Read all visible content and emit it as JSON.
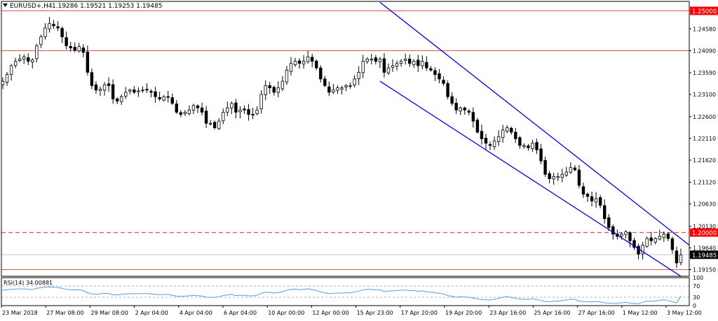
{
  "header": {
    "symbol_timeframe": "EURUSD+,H4",
    "ohlc": "1.19286 1.19521 1.19253 1.19485"
  },
  "colors": {
    "background": "#ffffff",
    "frame": "#000000",
    "candle_up": "#ffffff",
    "candle_down": "#000000",
    "level_line": "#d9534f",
    "level_label_bg": "#ff0000",
    "price_label_bg": "#000000",
    "channel": "#0000e0",
    "rsi_line": "#5b9bd5",
    "rsi_levels": "#b0b0b0",
    "bid_line": "#c8c8c8"
  },
  "chart_data": [
    {
      "type": "candlestick",
      "symbol": "EURUSD+",
      "timeframe": "H4",
      "y_ticks": [
        1.2458,
        1.2409,
        1.2359,
        1.231,
        1.226,
        1.2211,
        1.2162,
        1.2112,
        1.2063,
        1.2013,
        1.1964,
        1.1915
      ],
      "ylim": [
        1.19,
        1.252
      ],
      "x_tick_labels": [
        "23 Mar 2018",
        "27 Mar 08:00",
        "29 Mar 08:00",
        "2 Apr 04:00",
        "4 Apr 04:00",
        "6 Apr 04:00",
        "10 Apr 00:00",
        "12 Apr 00:00",
        "15 Apr 23:00",
        "17 Apr 20:00",
        "19 Apr 20:00",
        "23 Apr 16:00",
        "25 Apr 16:00",
        "27 Apr 16:00",
        "1 May 12:00",
        "3 May 12:00"
      ],
      "closes": [
        1.234,
        1.2355,
        1.2375,
        1.2385,
        1.239,
        1.2395,
        1.2385,
        1.2388,
        1.242,
        1.244,
        1.246,
        1.247,
        1.2465,
        1.246,
        1.244,
        1.242,
        1.2415,
        1.241,
        1.2418,
        1.2405,
        1.236,
        1.233,
        1.232,
        1.2322,
        1.2332,
        1.233,
        1.23,
        1.2295,
        1.2305,
        1.2315,
        1.232,
        1.2315,
        1.2318,
        1.232,
        1.232,
        1.2315,
        1.2305,
        1.23,
        1.2305,
        1.2305,
        1.229,
        1.227,
        1.2265,
        1.227,
        1.2275,
        1.2285,
        1.228,
        1.227,
        1.2245,
        1.2245,
        1.2235,
        1.225,
        1.227,
        1.228,
        1.229,
        1.227,
        1.2275,
        1.2275,
        1.2265,
        1.2265,
        1.2275,
        1.231,
        1.233,
        1.2325,
        1.2315,
        1.2325,
        1.234,
        1.2365,
        1.238,
        1.2385,
        1.238,
        1.2385,
        1.2395,
        1.2385,
        1.237,
        1.2345,
        1.233,
        1.2315,
        1.232,
        1.2325,
        1.2325,
        1.233,
        1.233,
        1.2345,
        1.236,
        1.2385,
        1.239,
        1.239,
        1.2385,
        1.239,
        1.236,
        1.237,
        1.2375,
        1.238,
        1.2385,
        1.239,
        1.238,
        1.2385,
        1.2375,
        1.2385,
        1.237,
        1.2365,
        1.2355,
        1.2345,
        1.2335,
        1.2305,
        1.229,
        1.2275,
        1.228,
        1.2275,
        1.227,
        1.225,
        1.2225,
        1.221,
        1.22,
        1.2195,
        1.2205,
        1.2215,
        1.223,
        1.2235,
        1.2225,
        1.221,
        1.2195,
        1.2195,
        1.219,
        1.22,
        1.2185,
        1.216,
        1.213,
        1.212,
        1.2125,
        1.2125,
        1.213,
        1.2135,
        1.2145,
        1.214,
        1.2105,
        1.2085,
        1.208,
        1.207,
        1.2075,
        1.206,
        1.203,
        1.201,
        1.1995,
        1.199,
        1.1995,
        1.2,
        1.198,
        1.1965,
        1.195,
        1.197,
        1.1985,
        1.198,
        1.1985,
        1.199,
        1.1995,
        1.1985,
        1.196,
        1.193,
        1.1948
      ],
      "horizontal_levels": [
        {
          "value": 1.25,
          "label": "1.25000",
          "style": "solid"
        },
        {
          "value": 1.2409,
          "label": "",
          "style": "solid"
        },
        {
          "value": 1.2,
          "label": "1.20000",
          "style": "dashed"
        },
        {
          "value": 1.1915,
          "label": "",
          "style": "solid"
        }
      ],
      "current_price": {
        "value": 1.19485,
        "label": "1.19485"
      },
      "channel": {
        "upper": {
          "from": {
            "bar": 89,
            "price": 1.2518
          },
          "to": {
            "bar": 160,
            "price": 1.1985
          }
        },
        "lower": {
          "from": {
            "bar": 89,
            "price": 1.234
          },
          "to": {
            "bar": 160,
            "price": 1.19
          }
        }
      },
      "grid": false
    },
    {
      "type": "line",
      "title": "RSI(14) 34.00881",
      "y_ticks": [
        100,
        70,
        30,
        0
      ],
      "ylim": [
        0,
        100
      ],
      "levels": [
        70,
        30
      ],
      "series": [
        {
          "values": [
            55,
            57,
            58,
            59,
            60,
            60,
            58,
            58,
            62,
            64,
            66,
            67,
            66,
            65,
            62,
            58,
            57,
            56,
            57,
            54,
            46,
            42,
            41,
            42,
            44,
            43,
            39,
            38,
            40,
            42,
            43,
            42,
            43,
            43,
            43,
            42,
            40,
            39,
            40,
            40,
            37,
            34,
            33,
            34,
            35,
            37,
            36,
            34,
            30,
            30,
            29,
            32,
            36,
            38,
            40,
            36,
            37,
            37,
            35,
            35,
            37,
            44,
            48,
            47,
            45,
            47,
            50,
            55,
            58,
            59,
            57,
            58,
            60,
            57,
            54,
            49,
            46,
            43,
            44,
            45,
            45,
            46,
            46,
            49,
            52,
            57,
            58,
            58,
            56,
            57,
            50,
            52,
            53,
            54,
            55,
            56,
            53,
            54,
            51,
            53,
            49,
            48,
            46,
            44,
            42,
            36,
            33,
            30,
            32,
            31,
            30,
            27,
            24,
            22,
            21,
            20,
            23,
            26,
            30,
            32,
            29,
            26,
            23,
            23,
            22,
            25,
            22,
            18,
            15,
            14,
            16,
            16,
            18,
            20,
            23,
            22,
            16,
            14,
            14,
            13,
            15,
            13,
            10,
            9,
            8,
            8,
            10,
            12,
            9,
            8,
            7,
            12,
            16,
            15,
            17,
            19,
            21,
            18,
            14,
            10,
            34
          ]
        }
      ]
    }
  ]
}
